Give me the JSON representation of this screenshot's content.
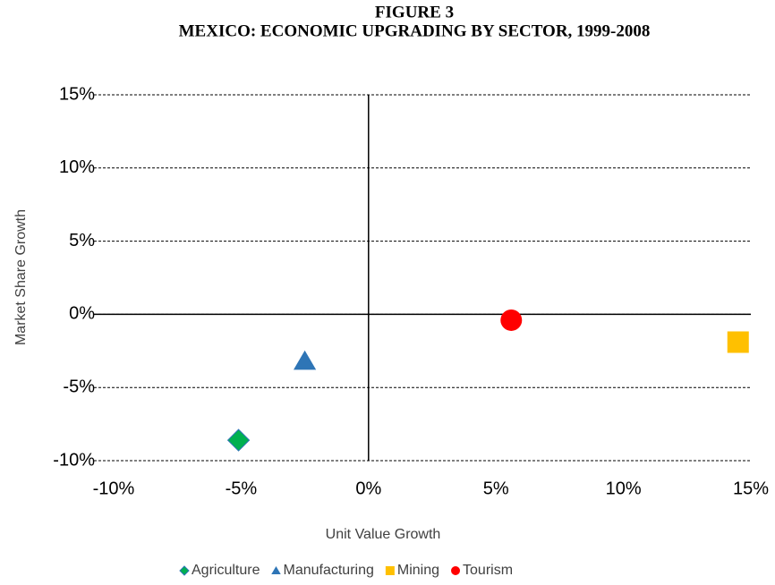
{
  "chart_data": {
    "type": "scatter",
    "title": "FIGURE 3",
    "subtitle": "MEXICO: ECONOMIC UPGRADING BY SECTOR, 1999-2008",
    "x_label": "Unit Value Growth",
    "y_label": "Market Share Growth",
    "xlim": [
      -10,
      15
    ],
    "ylim": [
      -10,
      15
    ],
    "xticks": [
      {
        "value": -10,
        "label": "-10%"
      },
      {
        "value": -5,
        "label": "-5%"
      },
      {
        "value": 0,
        "label": "0%"
      },
      {
        "value": 5,
        "label": "5%"
      },
      {
        "value": 10,
        "label": "10%"
      },
      {
        "value": 15,
        "label": "15%"
      }
    ],
    "yticks": [
      {
        "value": -10,
        "label": "-10%"
      },
      {
        "value": -5,
        "label": "-5%"
      },
      {
        "value": 0,
        "label": "0%"
      },
      {
        "value": 5,
        "label": "5%"
      },
      {
        "value": 10,
        "label": "10%"
      },
      {
        "value": 15,
        "label": "15%"
      }
    ],
    "grid": true,
    "legend": "bottom",
    "series": [
      {
        "name": "Agriculture",
        "color": "#00b050",
        "marker": "diamond",
        "x": [
          -5.1
        ],
        "values": [
          -8.6
        ]
      },
      {
        "name": "Manufacturing",
        "color": "#2e75b6",
        "marker": "triangle",
        "x": [
          -2.5
        ],
        "values": [
          -3.2
        ]
      },
      {
        "name": "Mining",
        "color": "#ffc000",
        "marker": "square",
        "x": [
          14.5
        ],
        "values": [
          -1.9
        ]
      },
      {
        "name": "Tourism",
        "color": "#ff0000",
        "marker": "circle",
        "x": [
          5.6
        ],
        "values": [
          -0.4
        ]
      }
    ]
  }
}
